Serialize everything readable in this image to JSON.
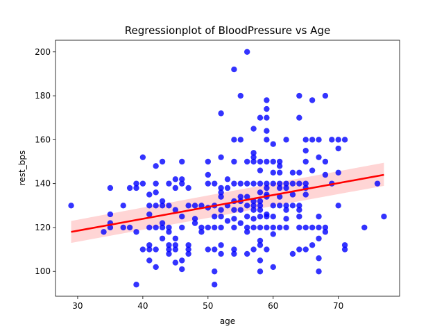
{
  "chart_data": {
    "type": "scatter",
    "title": "Regressionplot of BloodPressure vs Age",
    "xlabel": "age",
    "ylabel": "rest_bps",
    "xlim": [
      26.6,
      79.4
    ],
    "ylim": [
      88.7,
      205.3
    ],
    "xticks": [
      30,
      40,
      50,
      60,
      70
    ],
    "yticks": [
      100,
      120,
      140,
      160,
      180,
      200
    ],
    "grid": false,
    "colors": {
      "points": "#0000ff",
      "line": "#ff0000",
      "band": "#ffb3b3"
    },
    "regression": {
      "x": [
        29,
        77
      ],
      "y": [
        118,
        144
      ],
      "ci_lower": [
        113,
        139
      ],
      "ci_upper": [
        123,
        149.5
      ]
    },
    "points": [
      [
        29,
        130
      ],
      [
        34,
        118
      ],
      [
        35,
        120
      ],
      [
        35,
        122
      ],
      [
        35,
        126
      ],
      [
        35,
        138
      ],
      [
        37,
        120
      ],
      [
        37,
        130
      ],
      [
        38,
        120
      ],
      [
        38,
        138
      ],
      [
        39,
        94
      ],
      [
        39,
        118
      ],
      [
        39,
        138
      ],
      [
        39,
        140
      ],
      [
        40,
        110
      ],
      [
        40,
        140
      ],
      [
        40,
        152
      ],
      [
        41,
        105
      ],
      [
        41,
        110
      ],
      [
        41,
        112
      ],
      [
        41,
        120
      ],
      [
        41,
        126
      ],
      [
        41,
        130
      ],
      [
        41,
        135
      ],
      [
        42,
        102
      ],
      [
        42,
        110
      ],
      [
        42,
        120
      ],
      [
        42,
        130
      ],
      [
        42,
        136
      ],
      [
        42,
        140
      ],
      [
        42,
        148
      ],
      [
        43,
        115
      ],
      [
        43,
        120
      ],
      [
        43,
        122
      ],
      [
        43,
        130
      ],
      [
        43,
        132
      ],
      [
        43,
        150
      ],
      [
        44,
        108
      ],
      [
        44,
        110
      ],
      [
        44,
        112
      ],
      [
        44,
        118
      ],
      [
        44,
        120
      ],
      [
        44,
        130
      ],
      [
        44,
        140
      ],
      [
        45,
        104
      ],
      [
        45,
        110
      ],
      [
        45,
        112
      ],
      [
        45,
        115
      ],
      [
        45,
        128
      ],
      [
        45,
        138
      ],
      [
        45,
        142
      ],
      [
        46,
        101
      ],
      [
        46,
        105
      ],
      [
        46,
        120
      ],
      [
        46,
        125
      ],
      [
        46,
        140
      ],
      [
        46,
        142
      ],
      [
        46,
        150
      ],
      [
        47,
        108
      ],
      [
        47,
        110
      ],
      [
        47,
        112
      ],
      [
        47,
        130
      ],
      [
        47,
        138
      ],
      [
        48,
        122
      ],
      [
        48,
        124
      ],
      [
        48,
        130
      ],
      [
        49,
        118
      ],
      [
        49,
        120
      ],
      [
        49,
        130
      ],
      [
        50,
        110
      ],
      [
        50,
        120
      ],
      [
        50,
        129
      ],
      [
        50,
        140
      ],
      [
        50,
        144
      ],
      [
        50,
        150
      ],
      [
        51,
        94
      ],
      [
        51,
        100
      ],
      [
        51,
        110
      ],
      [
        51,
        120
      ],
      [
        51,
        125
      ],
      [
        51,
        130
      ],
      [
        51,
        140
      ],
      [
        52,
        108
      ],
      [
        52,
        112
      ],
      [
        52,
        120
      ],
      [
        52,
        125
      ],
      [
        52,
        128
      ],
      [
        52,
        134
      ],
      [
        52,
        136
      ],
      [
        52,
        138
      ],
      [
        52,
        152
      ],
      [
        52,
        172
      ],
      [
        53,
        123
      ],
      [
        53,
        130
      ],
      [
        53,
        138
      ],
      [
        53,
        142
      ],
      [
        54,
        108
      ],
      [
        54,
        110
      ],
      [
        54,
        120
      ],
      [
        54,
        124
      ],
      [
        54,
        128
      ],
      [
        54,
        132
      ],
      [
        54,
        140
      ],
      [
        54,
        150
      ],
      [
        54,
        160
      ],
      [
        54,
        192
      ],
      [
        55,
        122
      ],
      [
        55,
        128
      ],
      [
        55,
        132
      ],
      [
        55,
        134
      ],
      [
        55,
        140
      ],
      [
        55,
        160
      ],
      [
        55,
        180
      ],
      [
        56,
        108
      ],
      [
        56,
        118
      ],
      [
        56,
        120
      ],
      [
        56,
        125
      ],
      [
        56,
        130
      ],
      [
        56,
        134
      ],
      [
        56,
        140
      ],
      [
        56,
        150
      ],
      [
        56,
        200
      ],
      [
        57,
        110
      ],
      [
        57,
        120
      ],
      [
        57,
        124
      ],
      [
        57,
        128
      ],
      [
        57,
        130
      ],
      [
        57,
        132
      ],
      [
        57,
        140
      ],
      [
        57,
        150
      ],
      [
        57,
        152
      ],
      [
        57,
        154
      ],
      [
        57,
        165
      ],
      [
        58,
        100
      ],
      [
        58,
        105
      ],
      [
        58,
        112
      ],
      [
        58,
        114
      ],
      [
        58,
        120
      ],
      [
        58,
        125
      ],
      [
        58,
        128
      ],
      [
        58,
        130
      ],
      [
        58,
        132
      ],
      [
        58,
        136
      ],
      [
        58,
        140
      ],
      [
        58,
        146
      ],
      [
        58,
        150
      ],
      [
        58,
        170
      ],
      [
        59,
        110
      ],
      [
        59,
        120
      ],
      [
        59,
        125
      ],
      [
        59,
        126
      ],
      [
        59,
        134
      ],
      [
        59,
        135
      ],
      [
        59,
        138
      ],
      [
        59,
        140
      ],
      [
        59,
        150
      ],
      [
        59,
        160
      ],
      [
        59,
        164
      ],
      [
        59,
        170
      ],
      [
        59,
        174
      ],
      [
        59,
        178
      ],
      [
        60,
        102
      ],
      [
        60,
        117
      ],
      [
        60,
        120
      ],
      [
        60,
        125
      ],
      [
        60,
        130
      ],
      [
        60,
        140
      ],
      [
        60,
        145
      ],
      [
        60,
        150
      ],
      [
        60,
        158
      ],
      [
        61,
        120
      ],
      [
        61,
        130
      ],
      [
        61,
        134
      ],
      [
        61,
        138
      ],
      [
        61,
        140
      ],
      [
        61,
        145
      ],
      [
        61,
        148
      ],
      [
        61,
        150
      ],
      [
        62,
        120
      ],
      [
        62,
        124
      ],
      [
        62,
        128
      ],
      [
        62,
        130
      ],
      [
        62,
        138
      ],
      [
        62,
        140
      ],
      [
        62,
        160
      ],
      [
        63,
        108
      ],
      [
        63,
        130
      ],
      [
        63,
        135
      ],
      [
        63,
        140
      ],
      [
        63,
        145
      ],
      [
        64,
        110
      ],
      [
        64,
        120
      ],
      [
        64,
        125
      ],
      [
        64,
        128
      ],
      [
        64,
        130
      ],
      [
        64,
        140
      ],
      [
        64,
        145
      ],
      [
        64,
        170
      ],
      [
        64,
        180
      ],
      [
        65,
        110
      ],
      [
        65,
        120
      ],
      [
        65,
        135
      ],
      [
        65,
        138
      ],
      [
        65,
        140
      ],
      [
        65,
        150
      ],
      [
        65,
        155
      ],
      [
        65,
        160
      ],
      [
        66,
        112
      ],
      [
        66,
        120
      ],
      [
        66,
        146
      ],
      [
        66,
        160
      ],
      [
        66,
        178
      ],
      [
        67,
        100
      ],
      [
        67,
        106
      ],
      [
        67,
        115
      ],
      [
        67,
        120
      ],
      [
        67,
        125
      ],
      [
        67,
        152
      ],
      [
        67,
        160
      ],
      [
        68,
        118
      ],
      [
        68,
        120
      ],
      [
        68,
        144
      ],
      [
        68,
        150
      ],
      [
        68,
        180
      ],
      [
        69,
        140
      ],
      [
        69,
        160
      ],
      [
        70,
        130
      ],
      [
        70,
        145
      ],
      [
        70,
        156
      ],
      [
        70,
        160
      ],
      [
        71,
        110
      ],
      [
        71,
        112
      ],
      [
        71,
        160
      ],
      [
        74,
        120
      ],
      [
        76,
        140
      ],
      [
        77,
        125
      ]
    ]
  }
}
